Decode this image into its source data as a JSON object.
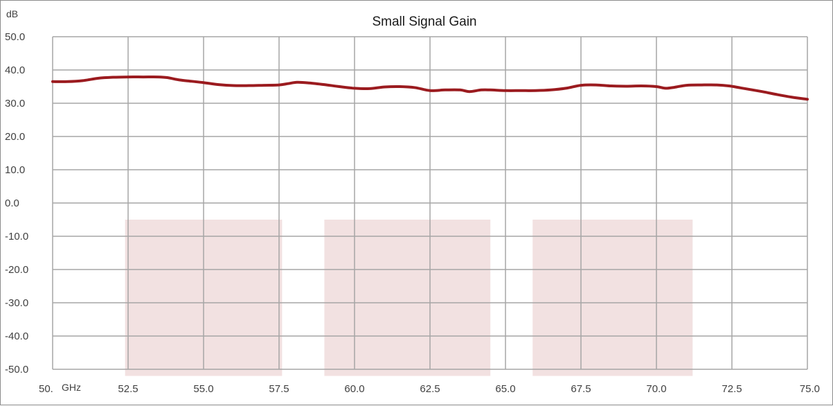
{
  "chart_data": {
    "type": "line",
    "title": "Small Signal Gain",
    "ylabel": "dB",
    "xlabel": "GHz",
    "xlim": [
      50,
      75
    ],
    "ylim": [
      -50,
      50
    ],
    "x_ticks": [
      50,
      52.5,
      55,
      57.5,
      60,
      62.5,
      65,
      67.5,
      70,
      72.5,
      75
    ],
    "x_tick_labels": [
      "50.",
      "52.5",
      "55.0",
      "57.5",
      "60.0",
      "62.5",
      "65.0",
      "67.5",
      "70.0",
      "72.5",
      "75.0"
    ],
    "y_ticks": [
      50,
      40,
      30,
      20,
      10,
      0,
      -10,
      -20,
      -30,
      -40,
      -50
    ],
    "y_tick_labels": [
      "50.0",
      "40.0",
      "30.0",
      "20.0",
      "10.0",
      "0.0",
      "-10.0",
      "-20.0",
      "-30.0",
      "-40.0",
      "-50.0"
    ],
    "grid": true,
    "legend": "none",
    "series": [
      {
        "color": "#9b1b1f",
        "x": [
          50,
          50.5,
          51,
          51.5,
          52,
          52.5,
          53,
          53.5,
          53.8,
          54.2,
          54.6,
          55,
          55.5,
          56,
          56.5,
          57,
          57.5,
          57.8,
          58.1,
          58.5,
          59,
          59.5,
          60,
          60.5,
          61,
          61.5,
          62,
          62.5,
          63,
          63.5,
          63.8,
          64.2,
          64.5,
          65,
          65.5,
          66,
          66.5,
          67,
          67.5,
          68,
          68.5,
          69,
          69.5,
          70,
          70.3,
          70.6,
          71,
          71.5,
          72,
          72.4,
          72.8,
          73.5,
          74,
          74.5,
          75
        ],
        "y": [
          36.5,
          36.5,
          36.8,
          37.5,
          37.8,
          37.9,
          37.9,
          37.9,
          37.7,
          37.0,
          36.6,
          36.2,
          35.6,
          35.3,
          35.3,
          35.4,
          35.5,
          35.9,
          36.3,
          36.1,
          35.6,
          35.0,
          34.5,
          34.4,
          34.9,
          35.0,
          34.7,
          33.8,
          34.0,
          34.0,
          33.5,
          34.0,
          34.0,
          33.8,
          33.8,
          33.8,
          34.0,
          34.5,
          35.4,
          35.5,
          35.2,
          35.1,
          35.2,
          35.0,
          34.5,
          34.8,
          35.4,
          35.5,
          35.5,
          35.2,
          34.6,
          33.5,
          32.6,
          31.8,
          31.2
        ]
      }
    ],
    "shaded_regions": [
      {
        "x_start": 52.4,
        "x_end": 57.6,
        "y_start": -52,
        "y_end": -5
      },
      {
        "x_start": 59.0,
        "x_end": 64.5,
        "y_start": -52,
        "y_end": -5
      },
      {
        "x_start": 65.9,
        "x_end": 71.2,
        "y_start": -52,
        "y_end": -5
      }
    ],
    "shaded_color": "#f2e1e1"
  }
}
